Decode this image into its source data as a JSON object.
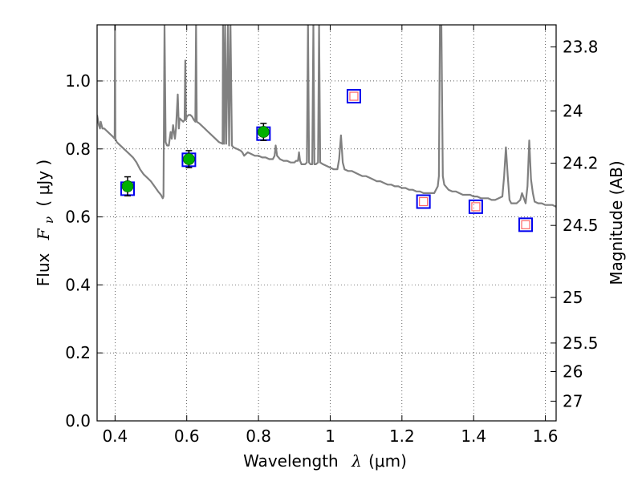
{
  "chart_data": {
    "type": "scatter",
    "title": "",
    "xlabel": {
      "prefix": "Wavelength",
      "symbol": "λ",
      "unit": "(μm)"
    },
    "ylabel": {
      "prefix": "Flux",
      "symbol": "F",
      "subscript": "ν",
      "unit": "( μJy )"
    },
    "y2label": "Magnitude (AB)",
    "xlim": [
      0.35,
      1.63
    ],
    "ylim": [
      0.0,
      1.165
    ],
    "grid": true,
    "x_ticks": [
      0.4,
      0.6,
      0.8,
      1.0,
      1.2,
      1.4,
      1.6
    ],
    "x_tick_labels": [
      "0.4",
      "0.6",
      "0.8",
      "1",
      "1.2",
      "1.4",
      "1.6"
    ],
    "y_ticks": [
      0.0,
      0.2,
      0.4,
      0.6,
      0.8,
      1.0
    ],
    "y_tick_labels": [
      "0.0",
      "0.2",
      "0.4",
      "0.6",
      "0.8",
      "1.0"
    ],
    "y2_ticks": [
      {
        "label": "23.8",
        "flux": 1.1
      },
      {
        "label": "24",
        "flux": 0.912
      },
      {
        "label": "24.2",
        "flux": 0.758
      },
      {
        "label": "24.5",
        "flux": 0.575
      },
      {
        "label": "25",
        "flux": 0.363
      },
      {
        "label": "25.5",
        "flux": 0.229
      },
      {
        "label": "26",
        "flux": 0.145
      },
      {
        "label": "27",
        "flux": 0.058
      }
    ],
    "series": [
      {
        "kind": "model-spectrum",
        "color": "#808080",
        "points": [
          [
            0.35,
            0.9
          ],
          [
            0.355,
            0.87
          ],
          [
            0.358,
            0.86
          ],
          [
            0.36,
            0.88
          ],
          [
            0.365,
            0.86
          ],
          [
            0.37,
            0.86
          ],
          [
            0.375,
            0.855
          ],
          [
            0.38,
            0.85
          ],
          [
            0.385,
            0.845
          ],
          [
            0.39,
            0.84
          ],
          [
            0.395,
            0.835
          ],
          [
            0.399,
            0.83
          ],
          [
            0.4,
            1.165
          ],
          [
            0.401,
            0.83
          ],
          [
            0.405,
            0.82
          ],
          [
            0.41,
            0.815
          ],
          [
            0.42,
            0.805
          ],
          [
            0.43,
            0.795
          ],
          [
            0.44,
            0.785
          ],
          [
            0.45,
            0.775
          ],
          [
            0.46,
            0.76
          ],
          [
            0.47,
            0.74
          ],
          [
            0.48,
            0.725
          ],
          [
            0.49,
            0.715
          ],
          [
            0.5,
            0.705
          ],
          [
            0.51,
            0.69
          ],
          [
            0.52,
            0.675
          ],
          [
            0.528,
            0.665
          ],
          [
            0.533,
            0.655
          ],
          [
            0.535,
            0.66
          ],
          [
            0.538,
            1.165
          ],
          [
            0.541,
            0.82
          ],
          [
            0.545,
            0.81
          ],
          [
            0.55,
            0.81
          ],
          [
            0.555,
            0.85
          ],
          [
            0.558,
            0.83
          ],
          [
            0.562,
            0.87
          ],
          [
            0.567,
            0.83
          ],
          [
            0.57,
            0.86
          ],
          [
            0.575,
            0.96
          ],
          [
            0.578,
            0.86
          ],
          [
            0.58,
            0.89
          ],
          [
            0.585,
            0.885
          ],
          [
            0.59,
            0.88
          ],
          [
            0.594,
            0.885
          ],
          [
            0.596,
            1.06
          ],
          [
            0.598,
            0.885
          ],
          [
            0.6,
            0.895
          ],
          [
            0.605,
            0.9
          ],
          [
            0.61,
            0.9
          ],
          [
            0.615,
            0.895
          ],
          [
            0.62,
            0.885
          ],
          [
            0.624,
            0.88
          ],
          [
            0.626,
            1.165
          ],
          [
            0.628,
            0.88
          ],
          [
            0.635,
            0.875
          ],
          [
            0.64,
            0.87
          ],
          [
            0.65,
            0.86
          ],
          [
            0.66,
            0.85
          ],
          [
            0.67,
            0.84
          ],
          [
            0.68,
            0.83
          ],
          [
            0.69,
            0.82
          ],
          [
            0.7,
            0.815
          ],
          [
            0.701,
            1.165
          ],
          [
            0.704,
            0.815
          ],
          [
            0.707,
            1.165
          ],
          [
            0.71,
            0.815
          ],
          [
            0.715,
            1.165
          ],
          [
            0.718,
            0.81
          ],
          [
            0.722,
            1.165
          ],
          [
            0.726,
            0.81
          ],
          [
            0.73,
            0.805
          ],
          [
            0.74,
            0.8
          ],
          [
            0.75,
            0.795
          ],
          [
            0.755,
            0.79
          ],
          [
            0.76,
            0.78
          ],
          [
            0.765,
            0.785
          ],
          [
            0.77,
            0.79
          ],
          [
            0.78,
            0.785
          ],
          [
            0.79,
            0.78
          ],
          [
            0.8,
            0.78
          ],
          [
            0.81,
            0.775
          ],
          [
            0.82,
            0.775
          ],
          [
            0.83,
            0.77
          ],
          [
            0.84,
            0.77
          ],
          [
            0.845,
            0.78
          ],
          [
            0.848,
            0.81
          ],
          [
            0.852,
            0.78
          ],
          [
            0.86,
            0.77
          ],
          [
            0.87,
            0.765
          ],
          [
            0.88,
            0.765
          ],
          [
            0.89,
            0.76
          ],
          [
            0.9,
            0.76
          ],
          [
            0.905,
            0.765
          ],
          [
            0.91,
            0.765
          ],
          [
            0.913,
            0.79
          ],
          [
            0.916,
            0.765
          ],
          [
            0.92,
            0.755
          ],
          [
            0.93,
            0.755
          ],
          [
            0.935,
            0.76
          ],
          [
            0.938,
            1.165
          ],
          [
            0.941,
            0.76
          ],
          [
            0.945,
            0.755
          ],
          [
            0.95,
            0.755
          ],
          [
            0.953,
            1.165
          ],
          [
            0.956,
            0.755
          ],
          [
            0.96,
            0.755
          ],
          [
            0.966,
            0.76
          ],
          [
            0.969,
            1.165
          ],
          [
            0.972,
            0.76
          ],
          [
            0.98,
            0.755
          ],
          [
            0.99,
            0.75
          ],
          [
            1.0,
            0.745
          ],
          [
            1.01,
            0.74
          ],
          [
            1.02,
            0.74
          ],
          [
            1.025,
            0.77
          ],
          [
            1.03,
            0.84
          ],
          [
            1.035,
            0.76
          ],
          [
            1.04,
            0.74
          ],
          [
            1.05,
            0.735
          ],
          [
            1.06,
            0.735
          ],
          [
            1.07,
            0.73
          ],
          [
            1.08,
            0.725
          ],
          [
            1.09,
            0.72
          ],
          [
            1.1,
            0.72
          ],
          [
            1.11,
            0.715
          ],
          [
            1.12,
            0.71
          ],
          [
            1.13,
            0.705
          ],
          [
            1.14,
            0.705
          ],
          [
            1.15,
            0.7
          ],
          [
            1.16,
            0.695
          ],
          [
            1.17,
            0.695
          ],
          [
            1.18,
            0.69
          ],
          [
            1.19,
            0.69
          ],
          [
            1.2,
            0.685
          ],
          [
            1.21,
            0.685
          ],
          [
            1.22,
            0.68
          ],
          [
            1.23,
            0.68
          ],
          [
            1.24,
            0.675
          ],
          [
            1.25,
            0.675
          ],
          [
            1.26,
            0.67
          ],
          [
            1.27,
            0.67
          ],
          [
            1.28,
            0.67
          ],
          [
            1.29,
            0.67
          ],
          [
            1.3,
            0.69
          ],
          [
            1.303,
            0.72
          ],
          [
            1.306,
            1.165
          ],
          [
            1.31,
            1.165
          ],
          [
            1.314,
            0.72
          ],
          [
            1.318,
            0.695
          ],
          [
            1.33,
            0.68
          ],
          [
            1.34,
            0.675
          ],
          [
            1.35,
            0.675
          ],
          [
            1.36,
            0.67
          ],
          [
            1.37,
            0.665
          ],
          [
            1.38,
            0.665
          ],
          [
            1.39,
            0.665
          ],
          [
            1.4,
            0.66
          ],
          [
            1.41,
            0.66
          ],
          [
            1.42,
            0.655
          ],
          [
            1.43,
            0.655
          ],
          [
            1.44,
            0.655
          ],
          [
            1.45,
            0.65
          ],
          [
            1.46,
            0.65
          ],
          [
            1.47,
            0.655
          ],
          [
            1.48,
            0.66
          ],
          [
            1.485,
            0.72
          ],
          [
            1.49,
            0.805
          ],
          [
            1.495,
            0.72
          ],
          [
            1.5,
            0.65
          ],
          [
            1.505,
            0.64
          ],
          [
            1.51,
            0.64
          ],
          [
            1.52,
            0.64
          ],
          [
            1.525,
            0.645
          ],
          [
            1.53,
            0.65
          ],
          [
            1.535,
            0.67
          ],
          [
            1.54,
            0.655
          ],
          [
            1.545,
            0.64
          ],
          [
            1.55,
            0.69
          ],
          [
            1.555,
            0.825
          ],
          [
            1.56,
            0.71
          ],
          [
            1.565,
            0.67
          ],
          [
            1.57,
            0.645
          ],
          [
            1.58,
            0.64
          ],
          [
            1.59,
            0.64
          ],
          [
            1.6,
            0.635
          ],
          [
            1.61,
            0.635
          ],
          [
            1.62,
            0.635
          ],
          [
            1.63,
            0.63
          ]
        ]
      },
      {
        "kind": "observed",
        "marker": "filled-circle",
        "color": "#00b000",
        "errorbars": true,
        "points": [
          {
            "x": 0.435,
            "y": 0.69,
            "err": 0.028
          },
          {
            "x": 0.606,
            "y": 0.77,
            "err": 0.025
          },
          {
            "x": 0.814,
            "y": 0.85,
            "err": 0.025
          }
        ]
      },
      {
        "kind": "model-photometry",
        "marker": "open-square",
        "color": "#0000ee",
        "points": [
          {
            "x": 0.435,
            "y": 0.683
          },
          {
            "x": 0.606,
            "y": 0.768
          },
          {
            "x": 0.814,
            "y": 0.845
          },
          {
            "x": 1.066,
            "y": 0.955
          },
          {
            "x": 1.26,
            "y": 0.645
          },
          {
            "x": 1.406,
            "y": 0.63
          },
          {
            "x": 1.545,
            "y": 0.577
          }
        ]
      },
      {
        "kind": "upper-limit-photometry",
        "marker": "small-open-square",
        "color": "#ff6666",
        "points": [
          {
            "x": 1.066,
            "y": 0.955
          },
          {
            "x": 1.26,
            "y": 0.645
          },
          {
            "x": 1.406,
            "y": 0.63
          },
          {
            "x": 1.545,
            "y": 0.577
          }
        ]
      }
    ]
  }
}
